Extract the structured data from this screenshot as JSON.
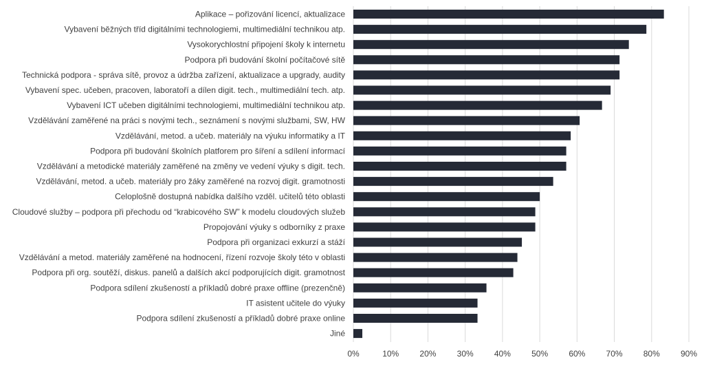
{
  "chart_data": {
    "type": "bar",
    "orientation": "horizontal",
    "categories": [
      "Aplikace – pořizování licencí, aktualizace",
      "Vybavení běžných tříd digitálními technologiemi, multimediální technikou atp.",
      "Vysokorychlostní připojení školy k internetu",
      "Podpora při budování školní počítačové sítě",
      "Technická podpora - správa sítě, provoz a údržba zařízení, aktualizace a upgrady, audity",
      "Vybavení spec. učeben, pracoven, laboratoří a dílen digit. tech., multimediální tech. atp.",
      "Vybavení ICT učeben digitálními technologiemi, multimediální technikou atp.",
      "Vzdělávání zaměřené na práci s novými tech., seznámení s novými službami, SW, HW",
      "Vzdělávání, metod. a učeb. materiály na výuku informatiky a IT",
      "Podpora při budování školních platforem pro šíření a sdílení informací",
      "Vzdělávání a metodické materiály zaměřené na změny ve vedení výuky s digit. tech.",
      "Vzdělávání, metod. a učeb. materiály pro žáky zaměřené na rozvoj digit. gramotnosti",
      "Celoplošně dostupná nabídka dalšího vzděl. učitelů této oblasti",
      "Cloudové služby – podpora při přechodu od “krabicového SW” k modelu cloudových služeb",
      "Propojování výuky s odborníky z praxe",
      "Podpora při organizaci exkurzí a stáží",
      "Vzdělávání a metod. materiály zaměřené na hodnocení, řízení rozvoje školy této v oblasti",
      "Podpora při org. soutěží, diskus. panelů a dalších akcí podporujících digit. gramotnost",
      "Podpora sdílení zkušeností a příkladů dobré praxe offline (prezenčně)",
      "IT asistent učitele do výuky",
      "Podpora sdílení zkušeností a příkladů dobré praxe online",
      "Jiné"
    ],
    "values": [
      83.3,
      78.6,
      73.9,
      71.4,
      71.4,
      69.0,
      66.7,
      60.7,
      58.3,
      57.1,
      57.1,
      53.6,
      50.0,
      48.8,
      48.8,
      45.2,
      44.0,
      42.9,
      35.7,
      33.3,
      33.3,
      2.4
    ],
    "xticks": [
      "0%",
      "10%",
      "20%",
      "30%",
      "40%",
      "50%",
      "60%",
      "70%",
      "80%",
      "90%"
    ],
    "xlim": [
      0,
      90
    ],
    "grid": true,
    "bar_color": "#252a36",
    "grid_color": "#d9d9d9",
    "label_color": "#404040"
  }
}
